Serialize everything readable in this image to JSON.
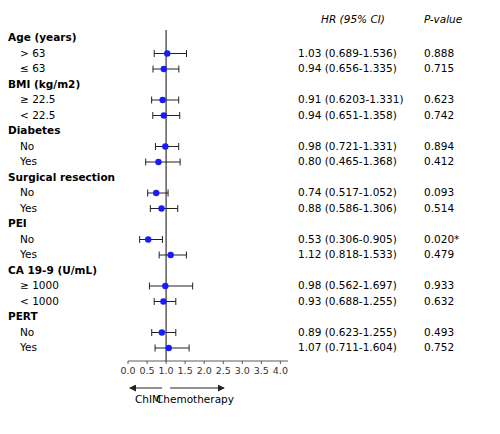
{
  "chart_data": {
    "type": "forest",
    "column_headers": [
      "HR (95% CI)",
      "P-value"
    ],
    "annotations": [
      "ChIM",
      "Chemotherapy"
    ],
    "xlim": [
      0.0,
      4.2
    ],
    "xticks": [
      {
        "value": 0.0,
        "label": "0.0"
      },
      0.5,
      {
        "value": 1.0,
        "label": "1.0"
      },
      1.5,
      {
        "value": 2.0,
        "label": "2.0"
      },
      2.5,
      {
        "value": 3.0,
        "label": "3.0"
      },
      3.5,
      {
        "value": 4.0,
        "label": "4.0"
      }
    ],
    "reference_line": 1.0,
    "color": "#1a1aff",
    "groups": [
      {
        "name": "Age (years)",
        "categories": [
          "> 63",
          "≤ 63"
        ],
        "values": [
          1.03,
          0.94
        ],
        "ci_lo": [
          0.689,
          0.656
        ],
        "ci_hi": [
          1.536,
          1.335
        ],
        "value_labels": [
          "1.03 (0.689-1.536)",
          "0.94 (0.656-1.335)"
        ],
        "p_values": [
          0.888,
          0.715
        ],
        "p_value_labels": [
          "0.888",
          "0.715"
        ]
      },
      {
        "name": "BMI (kg/m2)",
        "categories": [
          "≥ 22.5",
          "< 22.5"
        ],
        "values": [
          0.91,
          0.94
        ],
        "ci_lo": [
          0.6203,
          0.651
        ],
        "ci_hi": [
          1.331,
          1.358
        ],
        "value_labels": [
          "0.91 (0.6203-1.331)",
          "0.94 (0.651-1.358)"
        ],
        "p_values": [
          0.623,
          0.742
        ],
        "p_value_labels": [
          "0.623",
          "0.742"
        ]
      },
      {
        "name": "Diabetes",
        "categories": [
          "No",
          "Yes"
        ],
        "values": [
          0.98,
          0.8
        ],
        "ci_lo": [
          0.721,
          0.465
        ],
        "ci_hi": [
          1.331,
          1.368
        ],
        "value_labels": [
          "0.98 (0.721-1.331)",
          "0.80 (0.465-1.368)"
        ],
        "p_values": [
          0.894,
          0.412
        ],
        "p_value_labels": [
          "0.894",
          "0.412"
        ]
      },
      {
        "name": "Surgical resection",
        "categories": [
          "No",
          "Yes"
        ],
        "values": [
          0.74,
          0.88
        ],
        "ci_lo": [
          0.517,
          0.586
        ],
        "ci_hi": [
          1.052,
          1.306
        ],
        "value_labels": [
          "0.74 (0.517-1.052)",
          "0.88 (0.586-1.306)"
        ],
        "p_values": [
          0.093,
          0.514
        ],
        "p_value_labels": [
          "0.093",
          "0.514"
        ]
      },
      {
        "name": "PEI",
        "categories": [
          "No",
          "Yes"
        ],
        "values": [
          0.53,
          1.12
        ],
        "ci_lo": [
          0.306,
          0.818
        ],
        "ci_hi": [
          0.905,
          1.533
        ],
        "value_labels": [
          "0.53 (0.306-0.905)",
          "1.12 (0.818-1.533)"
        ],
        "p_values": [
          0.02,
          0.479
        ],
        "p_value_labels": [
          "0.020*",
          "0.479"
        ]
      },
      {
        "name": "CA 19-9 (U/mL)",
        "categories": [
          "≥ 1000",
          "< 1000"
        ],
        "values": [
          0.98,
          0.93
        ],
        "ci_lo": [
          0.562,
          0.688
        ],
        "ci_hi": [
          1.697,
          1.255
        ],
        "value_labels": [
          "0.98 (0.562-1.697)",
          "0.93 (0.688-1.255)"
        ],
        "p_values": [
          0.933,
          0.632
        ],
        "p_value_labels": [
          "0.933",
          "0.632"
        ]
      },
      {
        "name": "PERT",
        "categories": [
          "No",
          "Yes"
        ],
        "values": [
          0.89,
          1.07
        ],
        "ci_lo": [
          0.623,
          0.711
        ],
        "ci_hi": [
          1.255,
          1.604
        ],
        "value_labels": [
          "0.89 (0.623-1.255)",
          "1.07 (0.711-1.604)"
        ],
        "p_values": [
          0.493,
          0.752
        ],
        "p_value_labels": [
          "0.493",
          "0.752"
        ]
      }
    ]
  }
}
